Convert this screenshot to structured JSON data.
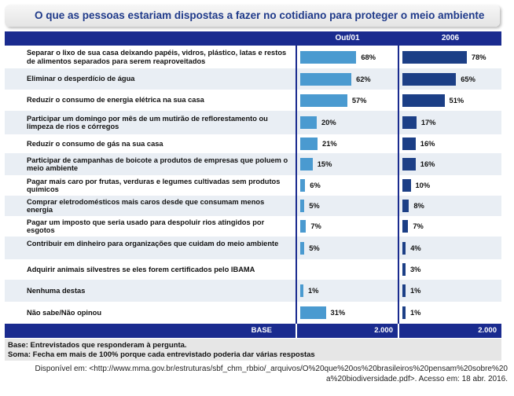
{
  "title": "O que as pessoas estariam dispostas a fazer no cotidiano para proteger o meio ambiente",
  "chart_data": {
    "type": "bar",
    "orientation": "horizontal",
    "title": "O que as pessoas estariam dispostas a fazer no cotidiano para proteger o meio ambiente",
    "categories": [
      "Separar o lixo de sua casa deixando papéis, vidros, plástico, latas e restos de alimentos separados para serem reaproveitados",
      "Eliminar o desperdício de água",
      "Reduzir o consumo de energia elétrica na sua casa",
      "Participar um domingo por mês de um mutirão de reflorestamento ou limpeza de rios e córregos",
      "Reduzir o consumo de gás na sua casa",
      "Participar de campanhas de boicote a produtos de empresas que poluem o meio ambiente",
      "Pagar mais caro por frutas, verduras e legumes cultivadas sem produtos químicos",
      "Comprar eletrodomésticos mais caros desde que consumam menos energia",
      "Pagar um imposto que seria usado para despoluir rios atingidos por esgotos",
      "Contribuir em dinheiro para organizações que cuidam do meio ambiente",
      "Adquirir animais silvestres se eles forem certificados pelo IBAMA",
      "Nenhuma destas",
      "Não sabe/Não opinou"
    ],
    "series": [
      {
        "name": "Out/01",
        "values": [
          68,
          62,
          57,
          20,
          21,
          15,
          6,
          5,
          7,
          5,
          null,
          1,
          31
        ]
      },
      {
        "name": "2006",
        "values": [
          78,
          65,
          51,
          17,
          16,
          16,
          10,
          8,
          7,
          4,
          3,
          1,
          1
        ]
      }
    ],
    "value_labels": {
      "Out/01": [
        "68%",
        "62%",
        "57%",
        "20%",
        "21%",
        "15%",
        "6%",
        "5%",
        "7%",
        "5%",
        "",
        "1%",
        "31%"
      ],
      "2006": [
        "78%",
        "65%",
        "51%",
        "17%",
        "16%",
        "16%",
        "10%",
        "8%",
        "7%",
        "4%",
        "3%",
        "1%",
        "1%"
      ]
    },
    "xlim": [
      0,
      100
    ],
    "base_label": "BASE",
    "base_values": [
      "2.000",
      "2.000"
    ]
  },
  "notes": {
    "base": "Base: Entrevistados que responderam à pergunta.",
    "soma": "Soma: Fecha em mais de 100% porque cada entrevistado poderia dar várias respostas"
  },
  "source": {
    "line1": "Disponível em: <http://www.mma.gov.br/estruturas/sbf_chm_rbbio/_arquivos/O%20que%20os%20brasileiros%20pensam%20sobre%20",
    "line2": "a%20biodiversidade.pdf>. Acesso em: 18 abr. 2016."
  },
  "colors": {
    "series_2001": "#4a9ad0",
    "series_2006": "#1c3f86",
    "header": "#1a2b8f",
    "title": "#1f3a8a"
  }
}
